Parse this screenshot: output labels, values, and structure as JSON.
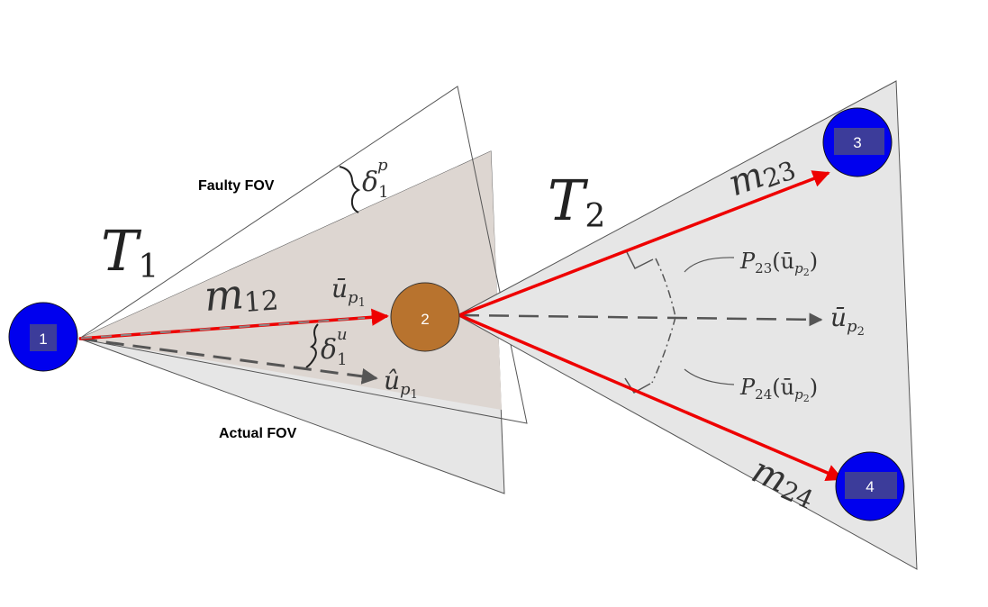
{
  "colors": {
    "node_blue": "#0000ee",
    "node_orange": "#b8732e",
    "edge_red": "#ee0000",
    "dashed_gray": "#555555",
    "fov_fill": "#e6e6e6",
    "fov_actual_fill": "#ddd8d4"
  },
  "nodes": [
    {
      "id": "1",
      "label": "1"
    },
    {
      "id": "2",
      "label": "2"
    },
    {
      "id": "3",
      "label": "3"
    },
    {
      "id": "4",
      "label": "4"
    }
  ],
  "labels": {
    "faulty_fov": "Faulty FOV",
    "actual_fov": "Actual FOV",
    "tau1_main": "T",
    "tau1_sub": "1",
    "tau2_main": "T",
    "tau2_sub": "2",
    "m12_main": "m",
    "m12_sub": "12",
    "m23_main": "m",
    "m23_sub": "23",
    "m24_main": "m",
    "m24_sub": "24",
    "delta_p_main": "δ",
    "delta_p_sub": "1",
    "delta_p_sup": "p",
    "delta_u_main": "δ",
    "delta_u_sub": "1",
    "delta_u_sup": "u",
    "u_bar_p1_main": "ū",
    "u_bar_p1_sub": "p",
    "u_bar_p1_subsub": "1",
    "u_hat_p1_main": "û",
    "u_hat_p1_sub": "p",
    "u_hat_p1_subsub": "1",
    "u_bar_p2_main": "ū",
    "u_bar_p2_sub": "p",
    "u_bar_p2_subsub": "2",
    "p23_main": "P",
    "p23_sub": "23",
    "p23_arg_open": "(ū",
    "p23_arg_sub": "p",
    "p23_arg_subsub": "2",
    "p23_arg_close": ")",
    "p24_main": "P",
    "p24_sub": "24",
    "p24_arg_open": "(ū",
    "p24_arg_sub": "p",
    "p24_arg_subsub": "2",
    "p24_arg_close": ")"
  }
}
